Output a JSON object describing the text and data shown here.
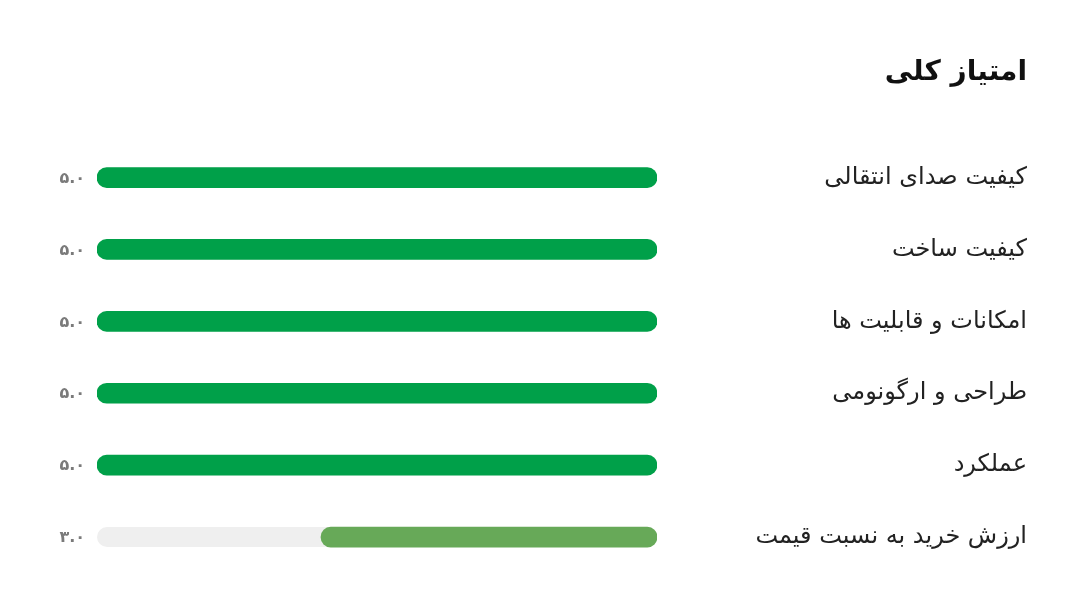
{
  "chart_data": {
    "type": "bar",
    "orientation": "horizontal",
    "title": "امتیاز کلی",
    "categories": [
      "کیفیت صدای انتقالی",
      "کیفیت ساخت",
      "امکانات و قابلیت ها",
      "طراحی و ارگونومی",
      "عملکرد",
      "ارزش خرید به نسبت قیمت"
    ],
    "values": [
      5,
      5,
      5,
      5,
      5,
      3
    ],
    "colors": [
      "#00a049",
      "#00a049",
      "#00a049",
      "#00a049",
      "#00a049",
      "#67a958"
    ],
    "value_labels": [
      "۵.۰",
      "۵.۰",
      "۵.۰",
      "۵.۰",
      "۵.۰",
      "۳.۰"
    ],
    "xlim": [
      5,
      0
    ],
    "tick_labels": "y"
  }
}
